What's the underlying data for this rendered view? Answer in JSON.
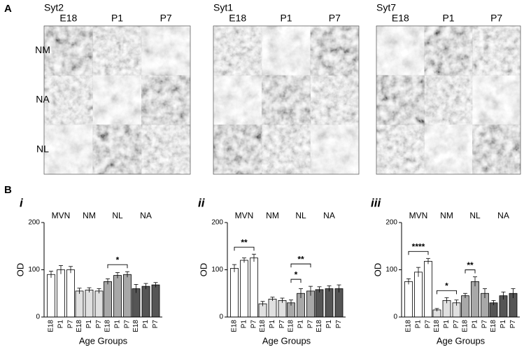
{
  "panel_a": {
    "label": "A",
    "row_labels": [
      "NM",
      "NA",
      "NL"
    ],
    "blocks": [
      {
        "title": "Syt2",
        "columns": [
          "E18",
          "P1",
          "P7"
        ]
      },
      {
        "title": "Syt1",
        "columns": [
          "E18",
          "P1",
          "P7"
        ]
      },
      {
        "title": "Syt7",
        "columns": [
          "E18",
          "P1",
          "P7"
        ]
      }
    ]
  },
  "panel_b": {
    "label": "B"
  },
  "chart_data": [
    {
      "type": "bar",
      "panel_label": "i",
      "ylabel": "OD",
      "xlabel": "Age Groups",
      "ylim": [
        0,
        200
      ],
      "yticks": [
        0,
        100,
        200
      ],
      "groups": [
        {
          "name": "MVN",
          "color": "#ffffff",
          "categories": [
            "E18",
            "P1",
            "P7"
          ],
          "values": [
            90,
            100,
            100
          ],
          "errors": [
            7,
            9,
            7
          ]
        },
        {
          "name": "NM",
          "color": "#e0e0e0",
          "categories": [
            "E18",
            "P1",
            "P7"
          ],
          "values": [
            55,
            57,
            55
          ],
          "errors": [
            6,
            5,
            5
          ]
        },
        {
          "name": "NL",
          "color": "#a8a8a8",
          "categories": [
            "E18",
            "P1",
            "P7"
          ],
          "values": [
            75,
            88,
            90
          ],
          "errors": [
            6,
            6,
            6
          ]
        },
        {
          "name": "NA",
          "color": "#555555",
          "categories": [
            "E18",
            "P1",
            "P7"
          ],
          "values": [
            60,
            65,
            68
          ],
          "errors": [
            9,
            6,
            5
          ]
        }
      ],
      "significance": [
        {
          "label": "*",
          "group": 2,
          "from": 0,
          "to": 2
        }
      ]
    },
    {
      "type": "bar",
      "panel_label": "ii",
      "ylabel": "OD",
      "xlabel": "Age Groups",
      "ylim": [
        0,
        200
      ],
      "yticks": [
        0,
        100,
        200
      ],
      "groups": [
        {
          "name": "MVN",
          "color": "#ffffff",
          "categories": [
            "E18",
            "P1",
            "P7"
          ],
          "values": [
            103,
            120,
            125
          ],
          "errors": [
            8,
            5,
            8
          ]
        },
        {
          "name": "NM",
          "color": "#e0e0e0",
          "categories": [
            "E18",
            "P1",
            "P7"
          ],
          "values": [
            28,
            38,
            35
          ],
          "errors": [
            5,
            4,
            5
          ]
        },
        {
          "name": "NL",
          "color": "#a8a8a8",
          "categories": [
            "E18",
            "P1",
            "P7"
          ],
          "values": [
            30,
            50,
            55
          ],
          "errors": [
            6,
            10,
            10
          ]
        },
        {
          "name": "NA",
          "color": "#555555",
          "categories": [
            "E18",
            "P1",
            "P7"
          ],
          "values": [
            58,
            60,
            60
          ],
          "errors": [
            6,
            6,
            8
          ]
        }
      ],
      "significance": [
        {
          "label": "**",
          "group": 0,
          "from": 0,
          "to": 2
        },
        {
          "label": "*",
          "group": 2,
          "from": 0,
          "to": 1
        },
        {
          "label": "**",
          "group": 2,
          "from": 0,
          "to": 2
        }
      ]
    },
    {
      "type": "bar",
      "panel_label": "iii",
      "ylabel": "OD",
      "xlabel": "Age Groups",
      "ylim": [
        0,
        200
      ],
      "yticks": [
        0,
        100,
        200
      ],
      "groups": [
        {
          "name": "MVN",
          "color": "#ffffff",
          "categories": [
            "E18",
            "P1",
            "P7"
          ],
          "values": [
            75,
            95,
            118
          ],
          "errors": [
            6,
            10,
            6
          ]
        },
        {
          "name": "NM",
          "color": "#e0e0e0",
          "categories": [
            "E18",
            "P1",
            "P7"
          ],
          "values": [
            15,
            35,
            30
          ],
          "errors": [
            3,
            6,
            6
          ]
        },
        {
          "name": "NL",
          "color": "#a8a8a8",
          "categories": [
            "E18",
            "P1",
            "P7"
          ],
          "values": [
            45,
            75,
            50
          ],
          "errors": [
            5,
            10,
            10
          ]
        },
        {
          "name": "NA",
          "color": "#555555",
          "categories": [
            "E18",
            "P1",
            "P7"
          ],
          "values": [
            30,
            45,
            50
          ],
          "errors": [
            5,
            8,
            10
          ]
        }
      ],
      "significance": [
        {
          "label": "****",
          "group": 0,
          "from": 0,
          "to": 2
        },
        {
          "label": "*",
          "group": 1,
          "from": 0,
          "to": 2
        },
        {
          "label": "**",
          "group": 2,
          "from": 0,
          "to": 1
        }
      ]
    }
  ]
}
